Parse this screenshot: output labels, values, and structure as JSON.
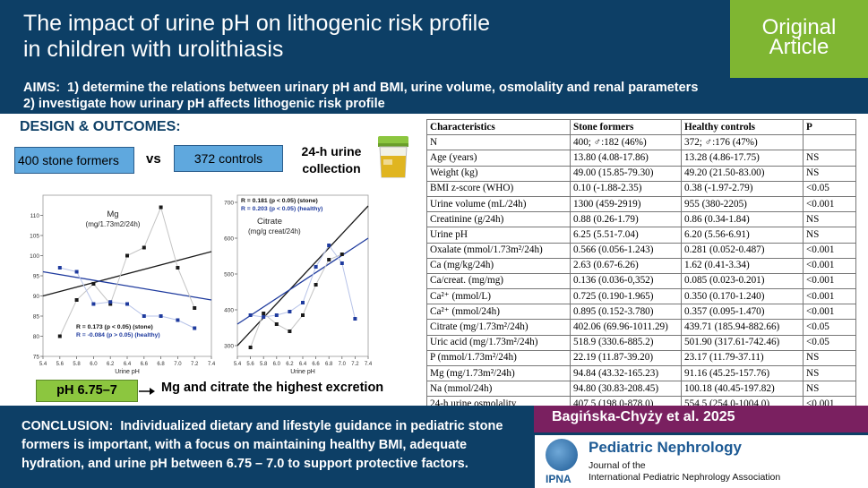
{
  "header": {
    "title_line1": "The impact of urine pH on lithogenic risk profile",
    "title_line2": "in children with urolithiasis",
    "badge_line1": "Original",
    "badge_line2": "Article"
  },
  "aims": {
    "label": "AIMS",
    "line1": "1) determine the relations between urinary pH and BMI, urine volume, osmolality and renal parameters",
    "line2": "2) investigate how urinary pH affects lithogenic risk profile"
  },
  "design": {
    "title": "DESIGN & OUTCOMES:",
    "group1": "400 stone formers",
    "vs": "vs",
    "group2": "372 controls",
    "collection_line1": "24-h urine",
    "collection_line2": "collection"
  },
  "highlight": {
    "ph_range": "pH 6.75–7",
    "finding": "Mg and citrate the highest excretion"
  },
  "conclusion": {
    "label": "CONCLUSION",
    "line1": "Individualized dietary and lifestyle guidance in pediatric stone",
    "line2": "formers is important, with a focus on maintaining healthy BMI, adequate",
    "line3": "hydration, and urine pH between 6.75 – 7.0 to support protective factors."
  },
  "citation": {
    "authors": "Bagińska-Chyży et al. 2025"
  },
  "journal": {
    "name": "Pediatric Nephrology",
    "sub_line1": "Journal of the",
    "sub_line2": "International Pediatric Nephrology Association",
    "logo_text": "IPNA"
  },
  "colors": {
    "navy": "#0d3f66",
    "green": "#7fb632",
    "purple": "#7a2060",
    "box_blue": "#5fa8de"
  },
  "table": {
    "headers": [
      "Characteristics",
      "Stone formers",
      "Healthy controls",
      "P"
    ],
    "rows": [
      [
        "N",
        "400; ♂:182 (46%)",
        "372; ♂:176 (47%)",
        ""
      ],
      [
        "Age (years)",
        "13.80 (4.08-17.86)",
        "13.28 (4.86-17.75)",
        "NS"
      ],
      [
        "Weight (kg)",
        "49.00 (15.85-79.30)",
        "49.20 (21.50-83.00)",
        "NS"
      ],
      [
        "BMI z-score (WHO)",
        "0.10 (-1.88-2.35)",
        "0.38 (-1.97-2.79)",
        "<0.05"
      ],
      [
        "Urine volume (mL/24h)",
        "1300 (459-2919)",
        "955 (380-2205)",
        "<0.001"
      ],
      [
        "Creatinine (g/24h)",
        "0.88 (0.26-1.79)",
        "0.86 (0.34-1.84)",
        "NS"
      ],
      [
        "Urine pH",
        "6.25 (5.51-7.04)",
        "6.20 (5.56-6.91)",
        "NS"
      ],
      [
        "Oxalate (mmol/1.73m²/24h)",
        "0.566 (0.056-1.243)",
        "0.281 (0.052-0.487)",
        "<0.001"
      ],
      [
        "Ca (mg/kg/24h)",
        "2.63 (0.67-6.26)",
        "1.62 (0.41-3.34)",
        "<0.001"
      ],
      [
        "Ca/creat. (mg/mg)",
        "0.136 (0.036-0,352)",
        "0.085 (0.023-0.201)",
        "<0.001"
      ],
      [
        "Ca²⁺ (mmol/L)",
        "0.725 (0.190-1.965)",
        "0.350 (0.170-1.240)",
        "<0.001"
      ],
      [
        "Ca²⁺ (mmol/24h)",
        "0.895 (0.152-3.780)",
        "0.357 (0.095-1.470)",
        "<0.001"
      ],
      [
        "Citrate (mg/1.73m²/24h)",
        "402.06 (69.96-1011.29)",
        "439.71 (185.94-882.66)",
        "<0.05"
      ],
      [
        "Uric acid (mg/1.73m²/24h)",
        "518.9 (330.6-885.2)",
        "501.90 (317.61-742.46)",
        "<0.05"
      ],
      [
        "P (mmol/1.73m²/24h)",
        "22.19 (11.87-39.20)",
        "23.17 (11.79-37.11)",
        "NS"
      ],
      [
        "Mg (mg/1.73m²/24h)",
        "94.84 (43.32-165.23)",
        "91.16 (45.25-157.76)",
        "NS"
      ],
      [
        "Na (mmol/24h)",
        "94.80 (30.83-208.45)",
        "100.18 (40.45-197.82)",
        "NS"
      ],
      [
        "24-h urine osmolality",
        "407.5 (198.0-878.0)",
        "554.5 (254.0-1004.0)",
        "<0.001"
      ]
    ]
  },
  "chart_data": [
    {
      "type": "scatter",
      "title": "Mg",
      "subtitle": "(mg/1.73m2/24h)",
      "xlabel": "Urine pH",
      "ylabel": "",
      "xlim": [
        5.4,
        7.4
      ],
      "ylim": [
        75,
        115
      ],
      "xticks": [
        "5.4",
        "5.6",
        "5.8",
        "6.0",
        "6.2",
        "6.4",
        "6.6",
        "6.8",
        "7.0",
        "7.2",
        "7.4"
      ],
      "yticks": [
        "75",
        "80",
        "85",
        "90",
        "95",
        "100",
        "105",
        "110"
      ],
      "annotations": [
        "R = 0.173 (p < 0.05) (stone)",
        "R = -0.084 (p > 0.05) (healthy)"
      ],
      "series": [
        {
          "name": "stone",
          "color": "#1a1a1a",
          "x": [
            5.6,
            5.8,
            6.0,
            6.2,
            6.4,
            6.6,
            6.8,
            7.0,
            7.2
          ],
          "y": [
            80,
            89,
            93,
            88,
            100,
            102,
            112,
            97,
            87
          ]
        },
        {
          "name": "healthy",
          "color": "#1f3b9e",
          "x": [
            5.6,
            5.8,
            6.0,
            6.2,
            6.4,
            6.6,
            6.8,
            7.0,
            7.2
          ],
          "y": [
            97,
            96,
            88,
            88.5,
            88,
            85,
            85,
            84,
            82
          ]
        }
      ],
      "trend_lines": [
        {
          "name": "stone",
          "color": "#1a1a1a",
          "x": [
            5.4,
            7.4
          ],
          "y": [
            90,
            101
          ]
        },
        {
          "name": "healthy",
          "color": "#1f3b9e",
          "x": [
            5.4,
            7.4
          ],
          "y": [
            96,
            89
          ]
        }
      ]
    },
    {
      "type": "scatter",
      "title": "Citrate",
      "subtitle": "(mg/g creat/24h)",
      "xlabel": "Urine pH",
      "ylabel": "",
      "xlim": [
        5.4,
        7.4
      ],
      "ylim": [
        270,
        720
      ],
      "xticks": [
        "5.4",
        "5.6",
        "5.8",
        "6.0",
        "6.2",
        "6.4",
        "6.6",
        "6.8",
        "7.0",
        "7.2",
        "7.4"
      ],
      "yticks": [
        "300",
        "400",
        "500",
        "600",
        "700"
      ],
      "annotations": [
        "R = 0.181 (p < 0.05) (stone)",
        "R = 0.203 (p < 0.05) (healthy)"
      ],
      "series": [
        {
          "name": "stone",
          "color": "#1a1a1a",
          "x": [
            5.6,
            5.8,
            6.0,
            6.2,
            6.4,
            6.6,
            6.8,
            7.0
          ],
          "y": [
            295,
            390,
            360,
            340,
            385,
            470,
            540,
            555
          ]
        },
        {
          "name": "healthy",
          "color": "#1f3b9e",
          "x": [
            5.6,
            5.8,
            6.0,
            6.2,
            6.4,
            6.6,
            6.8,
            7.0,
            7.2
          ],
          "y": [
            385,
            380,
            385,
            395,
            420,
            520,
            580,
            530,
            375
          ]
        }
      ],
      "trend_lines": [
        {
          "name": "stone",
          "color": "#1a1a1a",
          "x": [
            5.4,
            7.4
          ],
          "y": [
            300,
            690
          ]
        },
        {
          "name": "healthy",
          "color": "#1f3b9e",
          "x": [
            5.4,
            7.4
          ],
          "y": [
            360,
            600
          ]
        }
      ]
    }
  ]
}
